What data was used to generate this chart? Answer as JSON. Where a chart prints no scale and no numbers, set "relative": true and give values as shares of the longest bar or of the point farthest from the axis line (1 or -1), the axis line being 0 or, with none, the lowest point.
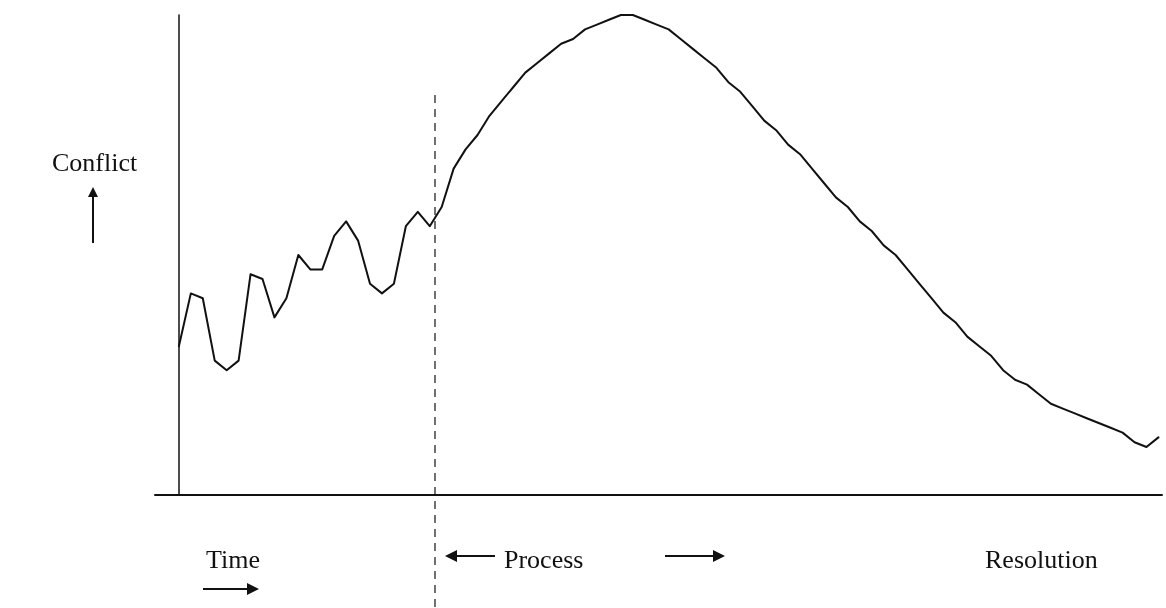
{
  "chart_data": {
    "type": "line",
    "relative": true,
    "ylabel": "Conflict",
    "categories": [
      null,
      null,
      null,
      null,
      null,
      null,
      null,
      null,
      null,
      null,
      null,
      null,
      null,
      null,
      null,
      null,
      null,
      null,
      null,
      null,
      null,
      null,
      null,
      null,
      null,
      null,
      null,
      null,
      null,
      null,
      null,
      null,
      null,
      null,
      null,
      null,
      null,
      null,
      null,
      null,
      null,
      null,
      null,
      null,
      null,
      null,
      null,
      null,
      null,
      null,
      null,
      null,
      null,
      null,
      null,
      null,
      null,
      null,
      null,
      null,
      null,
      null,
      null,
      null,
      null,
      null,
      null,
      null,
      null,
      null,
      null,
      null,
      null,
      null,
      null,
      null,
      null,
      null,
      null,
      null,
      null,
      null,
      null
    ],
    "series": [
      {
        "color": "#111111",
        "values": [
          0.31,
          0.42,
          0.41,
          0.28,
          0.26,
          0.28,
          0.46,
          0.45,
          0.37,
          0.41,
          0.5,
          0.47,
          0.47,
          0.54,
          0.57,
          0.53,
          0.44,
          0.42,
          0.44,
          0.56,
          0.59,
          0.56,
          0.6,
          0.68,
          0.72,
          0.75,
          0.79,
          0.82,
          0.85,
          0.88,
          0.9,
          0.92,
          0.94,
          0.95,
          0.97,
          0.98,
          0.99,
          1.0,
          1.0,
          0.99,
          0.98,
          0.97,
          0.95,
          0.93,
          0.91,
          0.89,
          0.86,
          0.84,
          0.81,
          0.78,
          0.76,
          0.73,
          0.71,
          0.68,
          0.65,
          0.62,
          0.6,
          0.57,
          0.55,
          0.52,
          0.5,
          0.47,
          0.44,
          0.41,
          0.38,
          0.36,
          0.33,
          0.31,
          0.29,
          0.26,
          0.24,
          0.23,
          0.21,
          0.19,
          0.18,
          0.17,
          0.16,
          0.15,
          0.14,
          0.13,
          0.11,
          0.1,
          0.12
        ]
      }
    ],
    "annotations": [
      "Time",
      "Process",
      "Resolution"
    ],
    "grid": false,
    "marker": "none",
    "line_style": "solid"
  }
}
